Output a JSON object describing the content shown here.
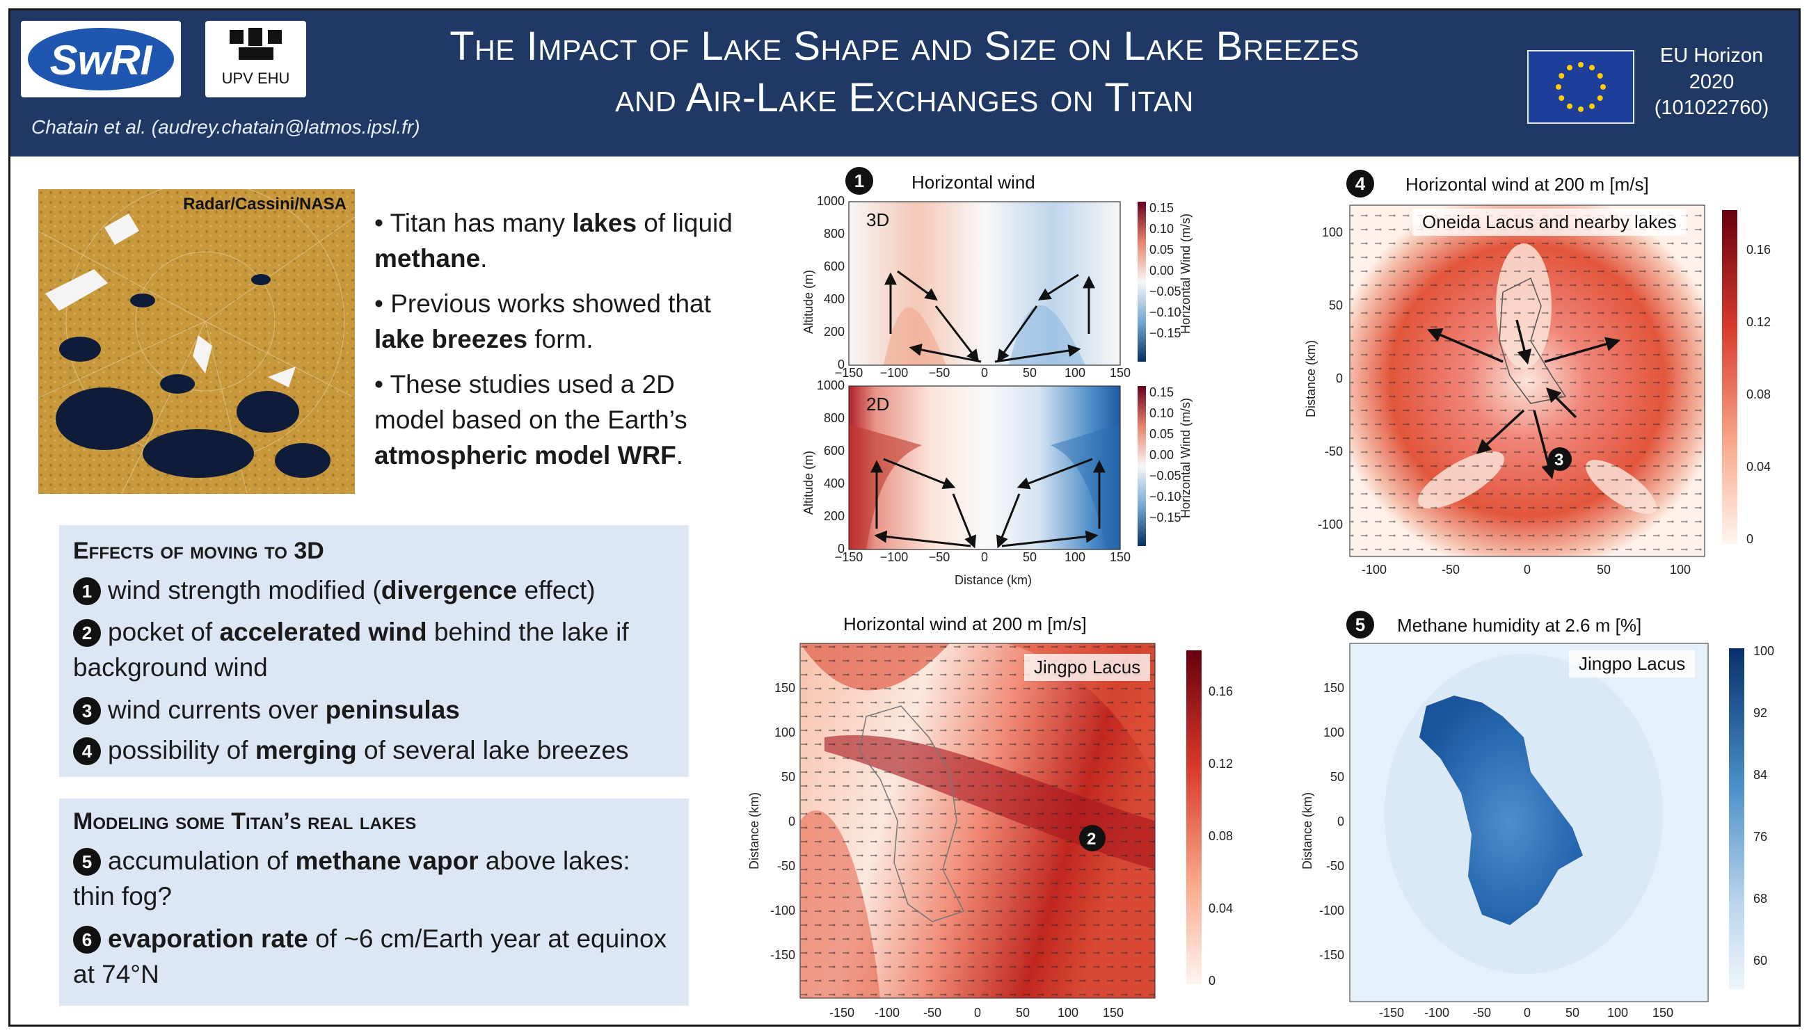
{
  "header": {
    "logo_swri": "SwRI",
    "logo_upv": "UPV   EHU",
    "authors": "Chatain et al. (audrey.chatain@latmos.ipsl.fr)",
    "title_line1": "The Impact of Lake Shape and Size on Lake Breezes",
    "title_line2": "and Air-Lake Exchanges on Titan",
    "eu_line1": "EU Horizon",
    "eu_line2": "2020",
    "eu_line3": "(101022760)"
  },
  "image_label": "Radar/Cassini/NASA",
  "intro": [
    {
      "pre": "Titan has many ",
      "b1": "lakes",
      "mid": " of liquid ",
      "b2": "methane",
      "post": "."
    },
    {
      "pre": "Previous works showed that ",
      "b1": "lake breezes",
      "mid": " form.",
      "b2": "",
      "post": ""
    },
    {
      "pre": "These studies used a 2D model based on the Earth’s ",
      "b1": "atmospheric model WRF",
      "mid": ".",
      "b2": "",
      "post": ""
    }
  ],
  "effects": {
    "title": "Effects of moving to 3D",
    "items": [
      {
        "n": "1",
        "pre": "wind strength modified (",
        "bold": "divergence",
        "post": " effect)"
      },
      {
        "n": "2",
        "pre": "pocket of ",
        "bold": "accelerated wind",
        "post": " behind the lake if background wind"
      },
      {
        "n": "3",
        "pre": "wind currents over ",
        "bold": "peninsulas",
        "post": ""
      },
      {
        "n": "4",
        "pre": "possibility of ",
        "bold": "merging",
        "post": " of several lake breezes"
      }
    ]
  },
  "modeling": {
    "title": "Modeling some Titan’s real lakes",
    "items": [
      {
        "n": "5",
        "pre": "accumulation of ",
        "bold": "methane vapor",
        "post": " above lakes: thin fog?"
      },
      {
        "n": "6",
        "pre": "",
        "bold": "evaporation rate",
        "post": " of ~6 cm/Earth year at equinox at 74°N"
      }
    ]
  },
  "panels": {
    "p1": {
      "num": "1",
      "title": "Horizontal wind",
      "label_3d": "3D",
      "label_2d": "2D",
      "ylabel": "Altitude (m)",
      "xlabel": "Distance (km)",
      "cbar_label": "Horizontal Wind (m/s)"
    },
    "p4": {
      "num": "4",
      "title": "Horizontal wind at 200 m [m/s]",
      "inset": "Oneida Lacus and nearby lakes",
      "ylabel": "Distance (km)",
      "marker": "3"
    },
    "p2": {
      "title": "Horizontal wind at 200 m [m/s]",
      "inset": "Jingpo Lacus",
      "ylabel": "Distance (km)",
      "marker": "2"
    },
    "p5": {
      "num": "5",
      "title": "Methane humidity at 2.6 m [%]",
      "inset": "Jingpo Lacus",
      "ylabel": "Distance (km)"
    }
  },
  "ticks": {
    "p1_x": [
      "−150",
      "−100",
      "−50",
      "0",
      "50",
      "100",
      "150"
    ],
    "p1_y": [
      "0",
      "200",
      "400",
      "600",
      "800",
      "1000"
    ],
    "p1_cbar": [
      "0.15",
      "0.10",
      "0.05",
      "0.00",
      "−0.05",
      "−0.10",
      "−0.15"
    ],
    "p4_x": [
      "-100",
      "-50",
      "0",
      "50",
      "100"
    ],
    "p4_y": [
      "100",
      "50",
      "0",
      "-50",
      "-100"
    ],
    "p4_cbar": [
      "0.16",
      "0.12",
      "0.08",
      "0.04",
      "0"
    ],
    "p2_x": [
      "-150",
      "-100",
      "-50",
      "0",
      "50",
      "100",
      "150"
    ],
    "p2_y": [
      "150",
      "100",
      "50",
      "0",
      "-50",
      "-100",
      "-150"
    ],
    "p2_cbar": [
      "0.16",
      "0.12",
      "0.08",
      "0.04",
      "0"
    ],
    "p5_x": [
      "-150",
      "-100",
      "-50",
      "0",
      "50",
      "100",
      "150"
    ],
    "p5_y": [
      "150",
      "100",
      "50",
      "0",
      "-50",
      "-100",
      "-150"
    ],
    "p5_cbar": [
      "100",
      "92",
      "84",
      "76",
      "68",
      "60"
    ]
  },
  "colors": {
    "header": "#1f3864",
    "box": "#dde7f3",
    "red": "#c0392b",
    "blue": "#1f5fa8"
  }
}
